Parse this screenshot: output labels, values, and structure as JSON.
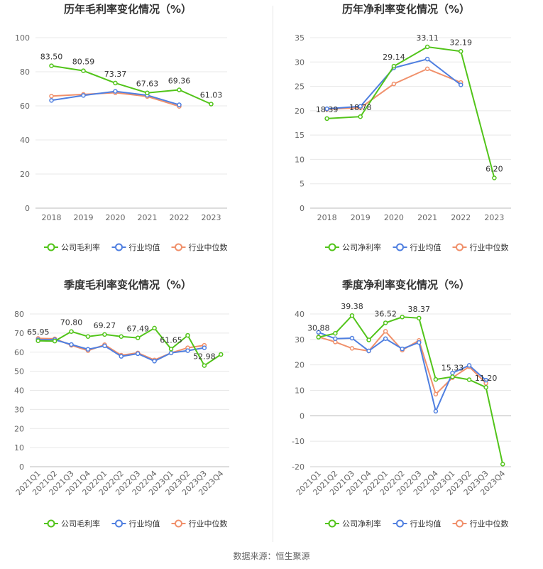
{
  "source": "数据来源：恒生聚源",
  "colors": {
    "company": "#52c41a",
    "industry_avg": "#4f7fe0",
    "industry_median": "#f0906b",
    "axis_text": "#666666",
    "grid": "#e8e8e8"
  },
  "legend_symbol": "circle-line-icon",
  "chart_data": [
    {
      "type": "line",
      "title": "历年毛利率变化情况（%）",
      "categories": [
        "2018",
        "2019",
        "2020",
        "2021",
        "2022",
        "2023"
      ],
      "ylim": [
        0,
        100
      ],
      "yticks": [
        0,
        20,
        40,
        60,
        80,
        100
      ],
      "grid": true,
      "legend_position": "bottom",
      "series": [
        {
          "name": "公司毛利率",
          "values": [
            83.5,
            80.59,
            73.37,
            67.63,
            69.36,
            61.03
          ],
          "labels": [
            "83.50",
            "80.59",
            "73.37",
            "67.63",
            "69.36",
            "61.03"
          ]
        },
        {
          "name": "行业均值",
          "values": [
            63.2,
            66.1,
            68.5,
            66.2,
            60.6,
            null
          ]
        },
        {
          "name": "行业中位数",
          "values": [
            65.7,
            66.7,
            67.7,
            65.5,
            59.7,
            null
          ]
        }
      ]
    },
    {
      "type": "line",
      "title": "历年净利率变化情况（%）",
      "categories": [
        "2018",
        "2019",
        "2020",
        "2021",
        "2022",
        "2023"
      ],
      "ylim": [
        0,
        35
      ],
      "yticks": [
        0,
        5,
        10,
        15,
        20,
        25,
        30,
        35
      ],
      "grid": true,
      "legend_position": "bottom",
      "series": [
        {
          "name": "公司净利率",
          "values": [
            18.39,
            18.78,
            29.14,
            33.11,
            32.19,
            6.2
          ],
          "labels": [
            "18.39",
            "18.78",
            "29.14",
            "33.11",
            "32.19",
            "6.20"
          ]
        },
        {
          "name": "行业均值",
          "values": [
            20.4,
            20.9,
            28.8,
            30.6,
            25.3,
            null
          ]
        },
        {
          "name": "行业中位数",
          "values": [
            20.3,
            20.6,
            25.5,
            28.6,
            25.8,
            null
          ]
        }
      ]
    },
    {
      "type": "line",
      "title": "季度毛利率变化情况（%）",
      "categories": [
        "2021Q1",
        "2021Q2",
        "2021Q3",
        "2021Q4",
        "2022Q1",
        "2022Q2",
        "2022Q3",
        "2022Q4",
        "2023Q1",
        "2023Q2",
        "2023Q3",
        "2023Q4"
      ],
      "ylim": [
        0,
        80
      ],
      "yticks": [
        0,
        10,
        20,
        30,
        40,
        50,
        60,
        70,
        80
      ],
      "grid": true,
      "legend_position": "bottom",
      "series": [
        {
          "name": "公司毛利率",
          "values": [
            65.95,
            65.8,
            70.8,
            68.2,
            69.27,
            68.2,
            67.49,
            72.6,
            61.65,
            68.8,
            52.98,
            58.8
          ],
          "labels": [
            "65.95",
            "",
            "70.80",
            "",
            "69.27",
            "",
            "67.49",
            "",
            "61.65",
            "",
            "52.98",
            ""
          ]
        },
        {
          "name": "行业均值",
          "values": [
            66.5,
            66.5,
            64.0,
            61.5,
            63.3,
            57.8,
            59.2,
            55.3,
            59.6,
            60.8,
            62.3,
            null
          ]
        },
        {
          "name": "行业中位数",
          "values": [
            67.2,
            67.0,
            63.6,
            60.8,
            63.9,
            58.4,
            59.6,
            55.9,
            59.6,
            62.3,
            63.6,
            null
          ]
        }
      ]
    },
    {
      "type": "line",
      "title": "季度净利率变化情况（%）",
      "categories": [
        "2021Q1",
        "2021Q2",
        "2021Q3",
        "2021Q4",
        "2022Q1",
        "2022Q2",
        "2022Q3",
        "2022Q4",
        "2023Q1",
        "2023Q2",
        "2023Q3",
        "2023Q4"
      ],
      "ylim": [
        -20,
        40
      ],
      "yticks": [
        -20,
        -10,
        0,
        10,
        20,
        30,
        40
      ],
      "grid": true,
      "legend_position": "bottom",
      "series": [
        {
          "name": "公司净利率",
          "values": [
            30.88,
            32.4,
            39.38,
            29.8,
            36.52,
            38.8,
            38.37,
            14.3,
            15.33,
            14.2,
            11.2,
            -19.0
          ],
          "labels": [
            "30.88",
            "",
            "39.38",
            "",
            "36.52",
            "",
            "38.37",
            "",
            "15.33",
            "",
            "11.20",
            ""
          ]
        },
        {
          "name": "行业均值",
          "values": [
            32.8,
            30.3,
            30.5,
            25.5,
            30.3,
            26.3,
            28.8,
            1.8,
            16.8,
            19.8,
            14.0,
            null
          ]
        },
        {
          "name": "行业中位数",
          "values": [
            31.0,
            29.0,
            26.5,
            25.5,
            33.2,
            25.8,
            29.6,
            8.5,
            15.0,
            19.3,
            12.8,
            null
          ]
        }
      ]
    }
  ]
}
